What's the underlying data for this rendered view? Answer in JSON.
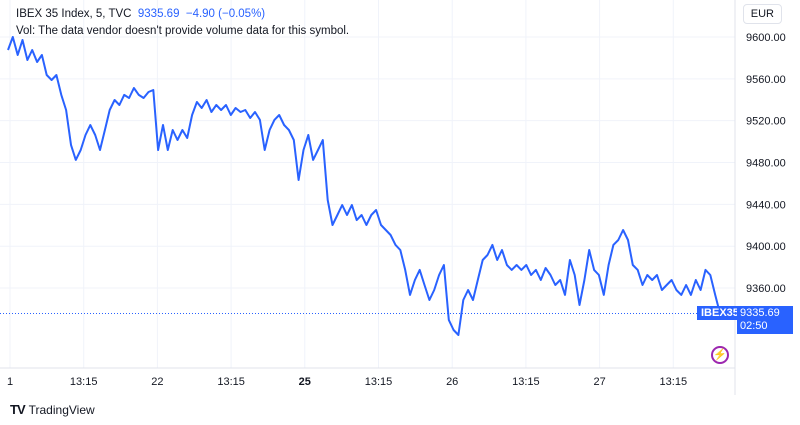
{
  "header": {
    "symbol": "IBEX 35 Index, 5, TVC",
    "price": "9335.69",
    "change": "−4.90 (−0.05%)",
    "volume_note": "Vol: The data vendor doesn't provide volume data for this symbol.",
    "currency": "EUR"
  },
  "price_tag": {
    "label": "IBEX35",
    "price": "9335.69",
    "countdown": "02:50"
  },
  "footer": {
    "brand": "TradingView"
  },
  "colors": {
    "line": "#2962ff",
    "tag": "#2962ff",
    "alert": "#9c27b0"
  },
  "chart_data": {
    "type": "line",
    "x_ticks": [
      {
        "label": "1",
        "bold": false
      },
      {
        "label": "13:15",
        "bold": false
      },
      {
        "label": "22",
        "bold": false
      },
      {
        "label": "13:15",
        "bold": false
      },
      {
        "label": "25",
        "bold": true
      },
      {
        "label": "13:15",
        "bold": false
      },
      {
        "label": "26",
        "bold": false
      },
      {
        "label": "13:15",
        "bold": false
      },
      {
        "label": "27",
        "bold": false
      },
      {
        "label": "13:15",
        "bold": false
      }
    ],
    "y_ticks": [
      "9600.00",
      "9560.00",
      "9520.00",
      "9480.00",
      "9440.00",
      "9400.00",
      "9360.00"
    ],
    "ylim": [
      9305,
      9612
    ],
    "last_value": 9335.69,
    "values": [
      9587.6,
      9600,
      9582.8,
      9597.1,
      9578,
      9587.6,
      9576.1,
      9582.8,
      9563.7,
      9558.9,
      9563.7,
      9544.6,
      9530.2,
      9496.8,
      9482.5,
      9492,
      9506.3,
      9515.9,
      9506.3,
      9492,
      9511.1,
      9530.2,
      9539.8,
      9535,
      9544.6,
      9541.7,
      9551.2,
      9544.6,
      9541.7,
      9547.4,
      9549.3,
      9492,
      9515.9,
      9492,
      9511.1,
      9501.5,
      9511.1,
      9503.4,
      9525.4,
      9537.9,
      9532.1,
      9539.8,
      9528.3,
      9535,
      9530.2,
      9535,
      9525.4,
      9532.1,
      9528.3,
      9530.2,
      9522.6,
      9528.3,
      9520.7,
      9492,
      9511.1,
      9520.7,
      9525.4,
      9515.9,
      9511.1,
      9501.5,
      9463.3,
      9492,
      9506.3,
      9482.5,
      9492,
      9501.5,
      9444.2,
      9420.3,
      9429.8,
      9439.4,
      9429.8,
      9439.4,
      9425,
      9429.8,
      9420.3,
      9429.8,
      9434.6,
      9420.3,
      9415.5,
      9410.7,
      9401.2,
      9396.4,
      9377.3,
      9353.4,
      9367.7,
      9377.3,
      9362.9,
      9348.6,
      9358.1,
      9372.5,
      9382,
      9329.5,
      9319.9,
      9315.1,
      9348.6,
      9358.1,
      9348.6,
      9367.7,
      9386.8,
      9391.6,
      9401.2,
      9386.8,
      9396.4,
      9382,
      9377.3,
      9382,
      9377.3,
      9382,
      9372.5,
      9377.3,
      9367.7,
      9379.2,
      9372.5,
      9362.9,
      9367.7,
      9353.4,
      9386.8,
      9372.5,
      9343.8,
      9367.7,
      9396.4,
      9377.3,
      9372.5,
      9353.4,
      9382,
      9401.2,
      9405.9,
      9415.5,
      9405.9,
      9382,
      9377.3,
      9362.9,
      9372.5,
      9367.7,
      9372.5,
      9358.1,
      9362.9,
      9367.7,
      9358.1,
      9353.4,
      9362.9,
      9353.4,
      9367.7,
      9358.1,
      9377.3,
      9372.5,
      9353.4,
      9335.7
    ]
  }
}
